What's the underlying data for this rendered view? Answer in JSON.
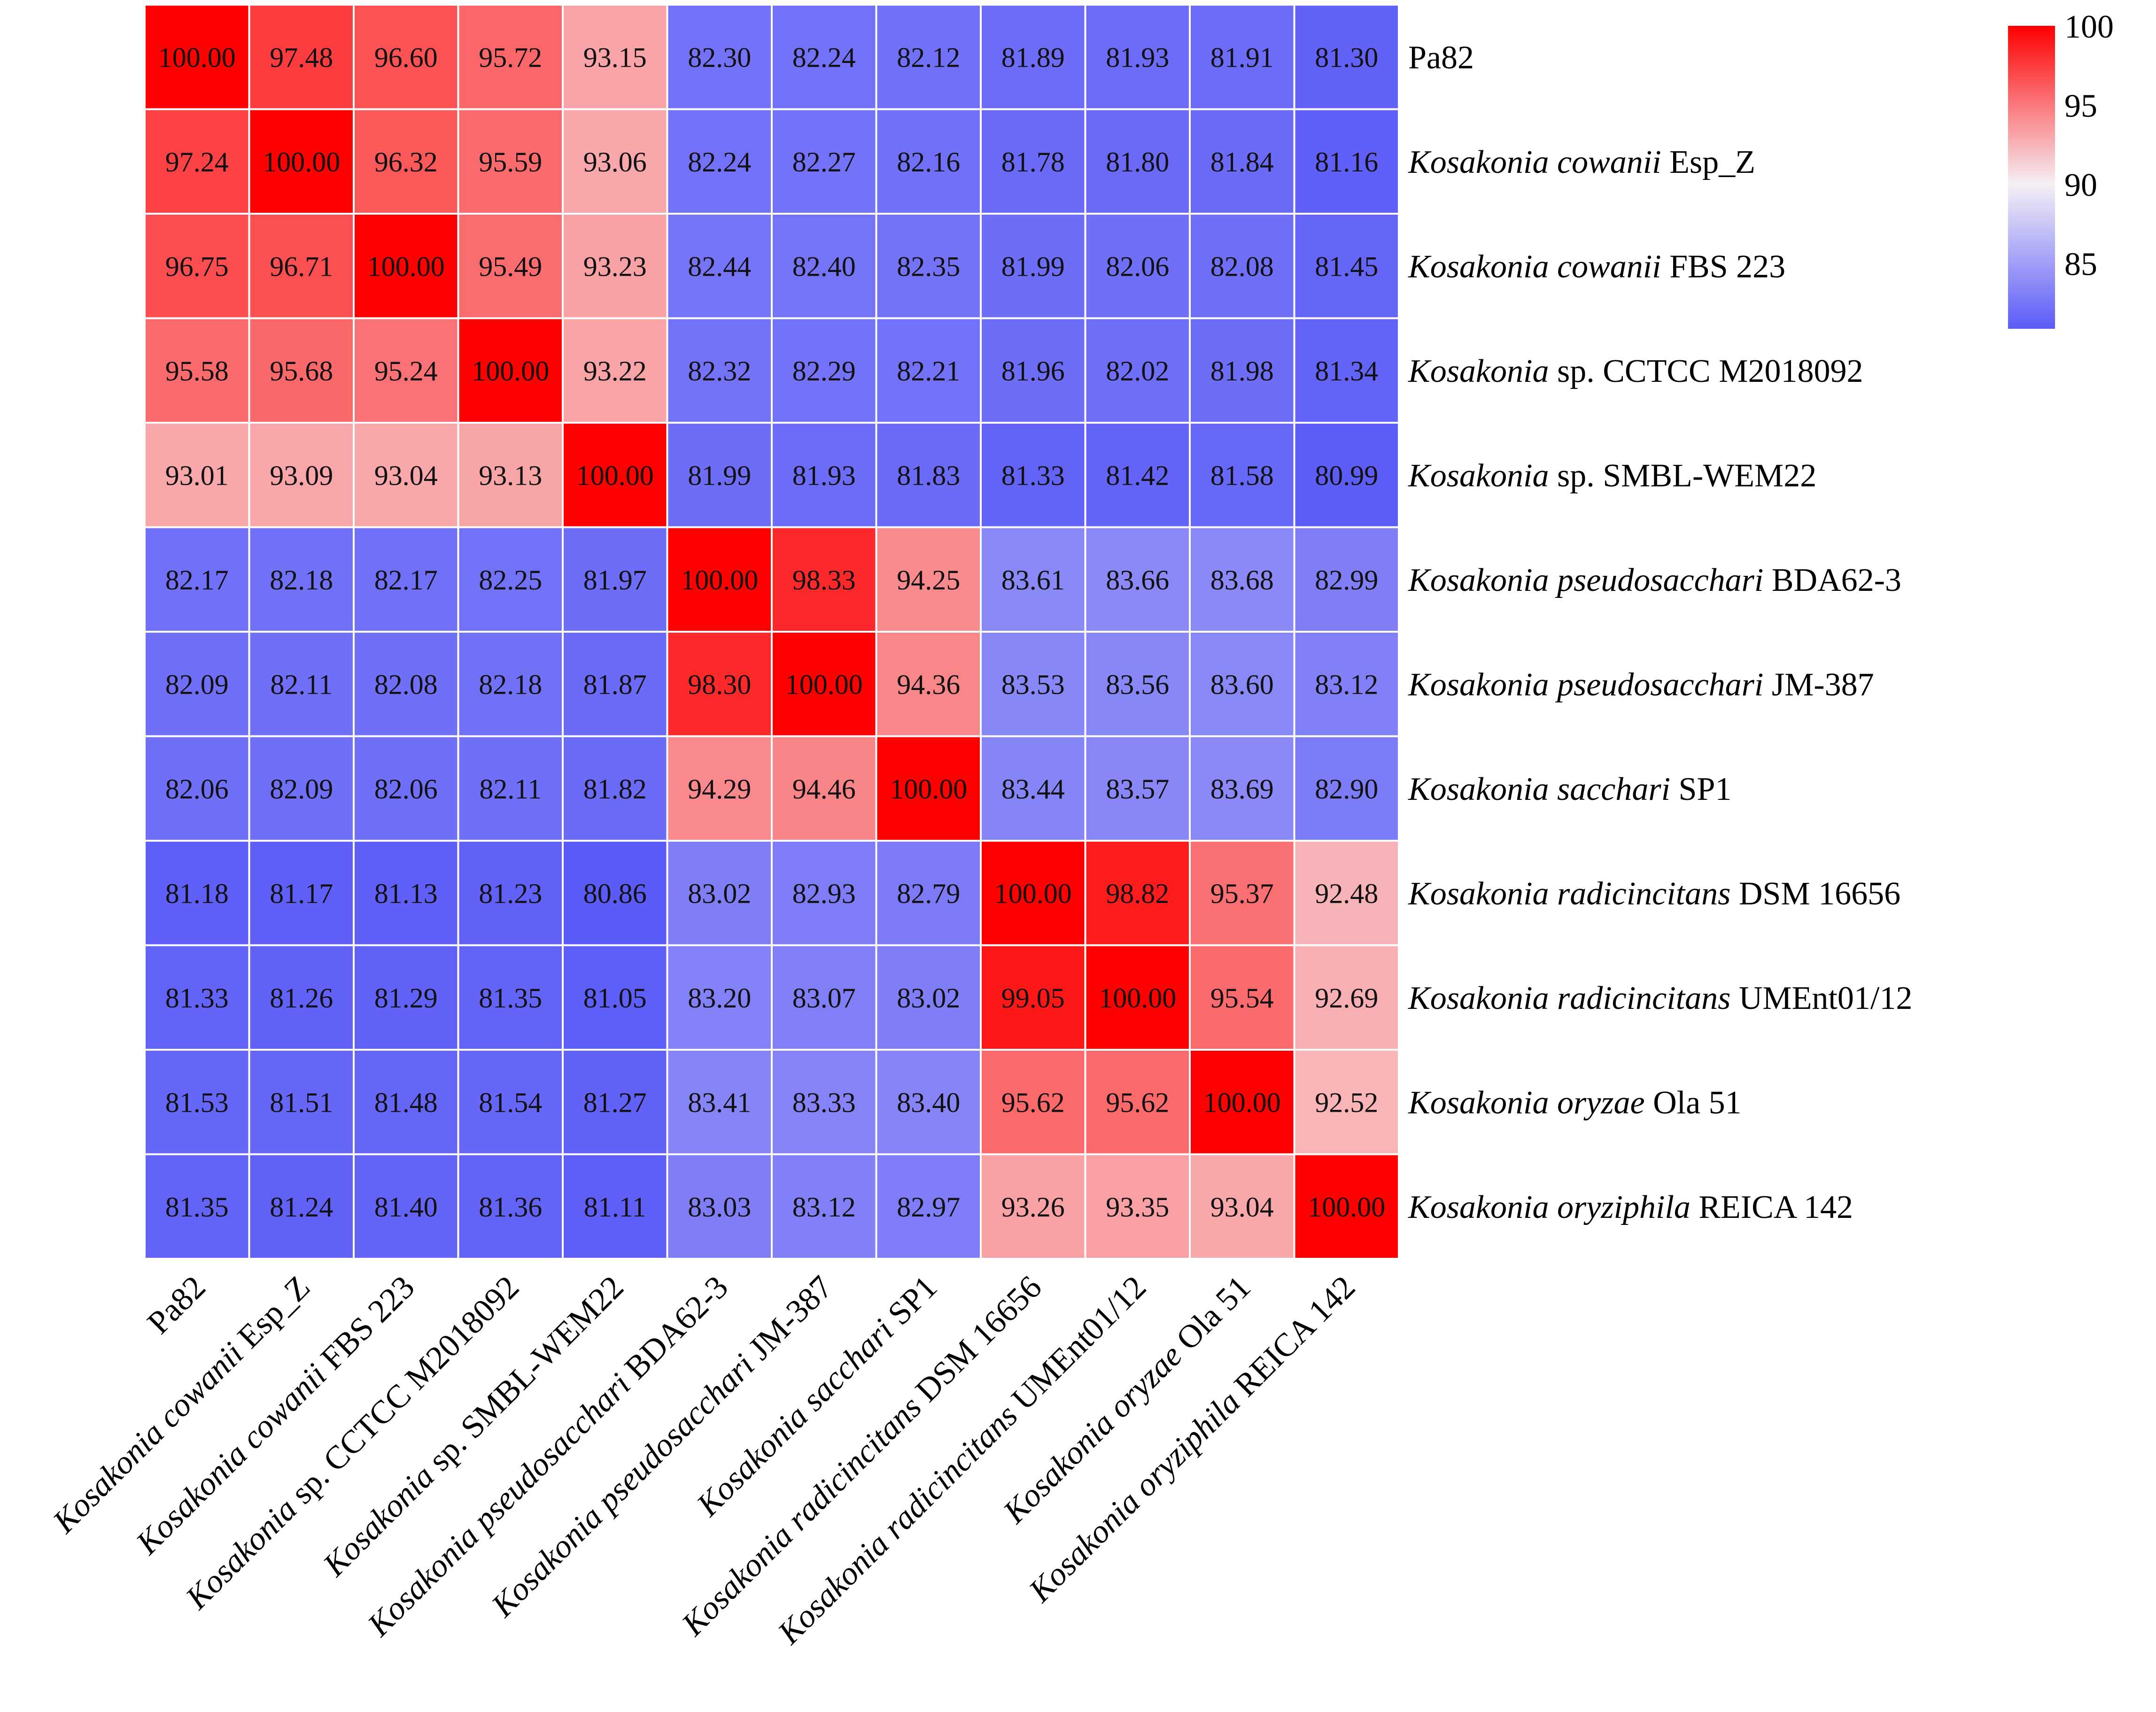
{
  "chart_data": {
    "type": "heatmap",
    "title": "",
    "xlabel": "",
    "ylabel": "",
    "labels": [
      {
        "italic": "",
        "plain": "Pa82"
      },
      {
        "italic": "Kosakonia cowanii",
        "plain": " Esp_Z"
      },
      {
        "italic": "Kosakonia cowanii",
        "plain": " FBS 223"
      },
      {
        "italic": "Kosakonia",
        "plain": " sp. CCTCC M2018092"
      },
      {
        "italic": "Kosakonia",
        "plain": " sp. SMBL-WEM22"
      },
      {
        "italic": "Kosakonia pseudosacchari",
        "plain": " BDA62-3"
      },
      {
        "italic": "Kosakonia pseudosacchari",
        "plain": " JM-387"
      },
      {
        "italic": "Kosakonia sacchari",
        "plain": " SP1"
      },
      {
        "italic": "Kosakonia radicincitans",
        "plain": " DSM 16656"
      },
      {
        "italic": "Kosakonia radicincitans",
        "plain": " UMEnt01/12"
      },
      {
        "italic": "Kosakonia oryzae",
        "plain": " Ola 51"
      },
      {
        "italic": "Kosakonia oryziphila",
        "plain": " REICA 142"
      }
    ],
    "values": [
      [
        "100.00",
        "97.48",
        "96.60",
        "95.72",
        "93.15",
        "82.30",
        "82.24",
        "82.12",
        "81.89",
        "81.93",
        "81.91",
        "81.30"
      ],
      [
        "97.24",
        "100.00",
        "96.32",
        "95.59",
        "93.06",
        "82.24",
        "82.27",
        "82.16",
        "81.78",
        "81.80",
        "81.84",
        "81.16"
      ],
      [
        "96.75",
        "96.71",
        "100.00",
        "95.49",
        "93.23",
        "82.44",
        "82.40",
        "82.35",
        "81.99",
        "82.06",
        "82.08",
        "81.45"
      ],
      [
        "95.58",
        "95.68",
        "95.24",
        "100.00",
        "93.22",
        "82.32",
        "82.29",
        "82.21",
        "81.96",
        "82.02",
        "81.98",
        "81.34"
      ],
      [
        "93.01",
        "93.09",
        "93.04",
        "93.13",
        "100.00",
        "81.99",
        "81.93",
        "81.83",
        "81.33",
        "81.42",
        "81.58",
        "80.99"
      ],
      [
        "82.17",
        "82.18",
        "82.17",
        "82.25",
        "81.97",
        "100.00",
        "98.33",
        "94.25",
        "83.61",
        "83.66",
        "83.68",
        "82.99"
      ],
      [
        "82.09",
        "82.11",
        "82.08",
        "82.18",
        "81.87",
        "98.30",
        "100.00",
        "94.36",
        "83.53",
        "83.56",
        "83.60",
        "83.12"
      ],
      [
        "82.06",
        "82.09",
        "82.06",
        "82.11",
        "81.82",
        "94.29",
        "94.46",
        "100.00",
        "83.44",
        "83.57",
        "83.69",
        "82.90"
      ],
      [
        "81.18",
        "81.17",
        "81.13",
        "81.23",
        "80.86",
        "83.02",
        "82.93",
        "82.79",
        "100.00",
        "98.82",
        "95.37",
        "92.48"
      ],
      [
        "81.33",
        "81.26",
        "81.29",
        "81.35",
        "81.05",
        "83.20",
        "83.07",
        "83.02",
        "99.05",
        "100.00",
        "95.54",
        "92.69"
      ],
      [
        "81.53",
        "81.51",
        "81.48",
        "81.54",
        "81.27",
        "83.41",
        "83.33",
        "83.40",
        "95.62",
        "95.62",
        "100.00",
        "92.52"
      ],
      [
        "81.35",
        "81.24",
        "81.40",
        "81.36",
        "81.11",
        "83.03",
        "83.12",
        "82.97",
        "93.26",
        "93.35",
        "93.04",
        "100.00"
      ]
    ],
    "color_scale": {
      "min": 80.86,
      "mid": 90,
      "max": 100,
      "low_color": "#5b5bf8",
      "mid_color": "#f5f0f5",
      "high_color": "#ff0000",
      "ticks": [
        "100",
        "95",
        "90",
        "85"
      ]
    },
    "legend_position": "top-right"
  }
}
